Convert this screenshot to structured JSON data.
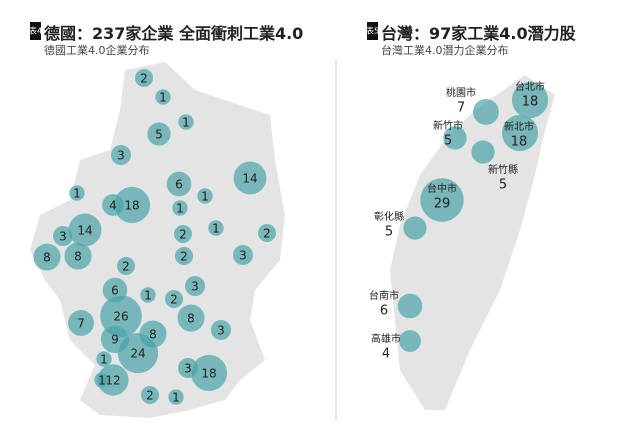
{
  "germany": {
    "tag": "表4",
    "title": "德國：237家企業 全面衝刺工業4.0",
    "subtitle": "德國工業4.0企業分布",
    "counts": [
      2,
      1,
      1,
      5,
      3,
      6,
      14,
      1,
      1,
      4,
      18,
      1,
      14,
      3,
      1,
      2,
      2,
      8,
      8,
      2,
      3,
      2,
      6,
      1,
      3,
      2,
      26,
      7,
      8,
      3,
      8,
      9,
      24,
      1,
      12,
      3,
      18,
      1,
      2,
      1
    ]
  },
  "taiwan": {
    "tag": "表5",
    "title": "台灣：97家工業4.0潛力股",
    "subtitle": "台灣工業4.0潛力企業分布",
    "regions": [
      {
        "name": "台北市",
        "count": 18
      },
      {
        "name": "桃園市",
        "count": 7
      },
      {
        "name": "新北市",
        "count": 18
      },
      {
        "name": "新竹市",
        "count": 5
      },
      {
        "name": "新竹縣",
        "count": 5
      },
      {
        "name": "台中市",
        "count": 29
      },
      {
        "name": "彰化縣",
        "count": 5
      },
      {
        "name": "台南市",
        "count": 6
      },
      {
        "name": "高雄市",
        "count": 4
      }
    ]
  }
}
